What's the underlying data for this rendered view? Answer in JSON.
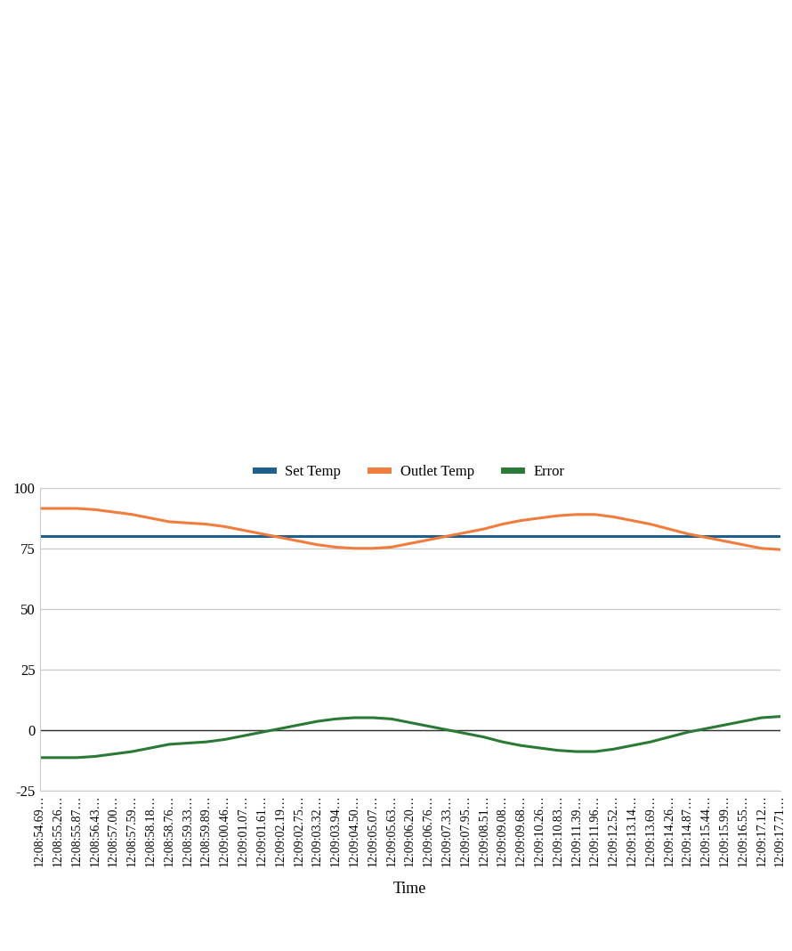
{
  "chart_data": {
    "type": "line",
    "x_label": "Time",
    "categories": [
      "12:08:54.69…",
      "12:08:55.26…",
      "12:08:55.87…",
      "12:08:56.43…",
      "12:08:57.00…",
      "12:08:57.59…",
      "12:08:58.18…",
      "12:08:58.76…",
      "12:08:59.33…",
      "12:08:59.89…",
      "12:09:00.46…",
      "12:09:01.07…",
      "12:09:01.61…",
      "12:09:02.19…",
      "12:09:02.75…",
      "12:09:03.32…",
      "12:09:03.94…",
      "12:09:04.50…",
      "12:09:05.07…",
      "12:09:05.63…",
      "12:09:06.20…",
      "12:09:06.76…",
      "12:09:07.33…",
      "12:09:07.95…",
      "12:09:08.51…",
      "12:09:09.08…",
      "12:09:09.68…",
      "12:09:10.26…",
      "12:09:10.83…",
      "12:09:11.39…",
      "12:09:11.96…",
      "12:09:12.52…",
      "12:09:13.14…",
      "12:09:13.69…",
      "12:09:14.26…",
      "12:09:14.87…",
      "12:09:15.44…",
      "12:09:15.99…",
      "12:09:16.55…",
      "12:09:17.12…",
      "12:09:17.71…"
    ],
    "series": [
      {
        "name": "Set Temp",
        "color": "#1f5f8b",
        "values": [
          80,
          80,
          80,
          80,
          80,
          80,
          80,
          80,
          80,
          80,
          80,
          80,
          80,
          80,
          80,
          80,
          80,
          80,
          80,
          80,
          80,
          80,
          80,
          80,
          80,
          80,
          80,
          80,
          80,
          80,
          80,
          80,
          80,
          80,
          80,
          80,
          80,
          80,
          80,
          80,
          80
        ]
      },
      {
        "name": "Outlet Temp",
        "color": "#f07c3e",
        "values": [
          91.5,
          91.5,
          91.5,
          91,
          90,
          89,
          87.5,
          86,
          85.5,
          85,
          84,
          82.5,
          81,
          79.5,
          78,
          76.5,
          75.5,
          75,
          75,
          75.5,
          77,
          78.5,
          80,
          81.5,
          83,
          85,
          86.5,
          87.5,
          88.5,
          89,
          89,
          88,
          86.5,
          85,
          83,
          81,
          79.5,
          78,
          76.5,
          75,
          74.5
        ]
      },
      {
        "name": "Error",
        "color": "#2a7a35",
        "values": [
          -11.5,
          -11.5,
          -11.5,
          -11,
          -10,
          -9,
          -7.5,
          -6,
          -5.5,
          -5,
          -4,
          -2.5,
          -1,
          0.5,
          2,
          3.5,
          4.5,
          5,
          5,
          4.5,
          3,
          1.5,
          0,
          -1.5,
          -3,
          -5,
          -6.5,
          -7.5,
          -8.5,
          -9,
          -9,
          -8,
          -6.5,
          -5,
          -3,
          -1,
          0.5,
          2,
          3.5,
          5,
          5.5
        ]
      }
    ],
    "ylim": [
      -25,
      100
    ],
    "yticks": [
      -25,
      0,
      25,
      50,
      75,
      100
    ],
    "grid": true,
    "legend": "upper center"
  }
}
